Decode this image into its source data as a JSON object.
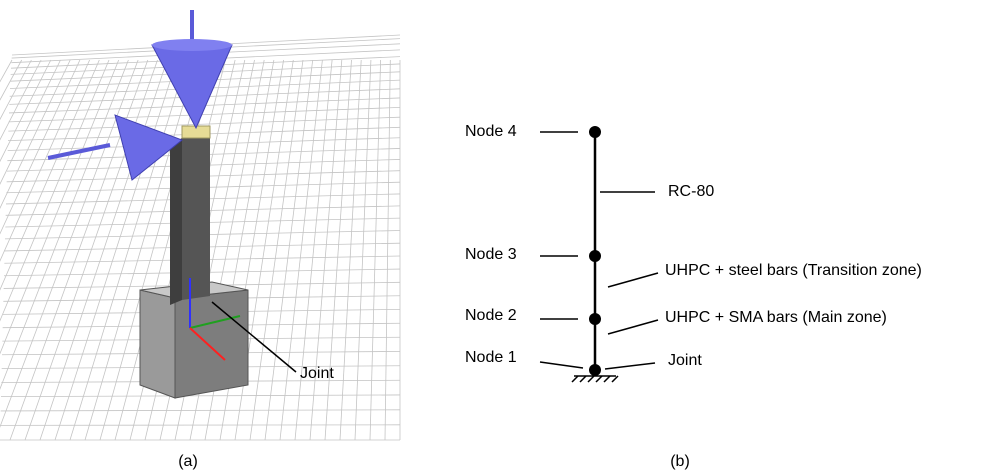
{
  "panel_a": {
    "labels": {
      "joint": "Joint"
    },
    "caption": "(a)"
  },
  "panel_b": {
    "nodes": [
      {
        "label": "Node 1"
      },
      {
        "label": "Node 2"
      },
      {
        "label": "Node 3"
      },
      {
        "label": "Node 4"
      }
    ],
    "elements": [
      {
        "label": "RC-80"
      },
      {
        "label": "UHPC + steel bars (Transition zone)"
      },
      {
        "label": "UHPC + SMA bars (Main zone)"
      },
      {
        "label": "Joint"
      }
    ],
    "caption": "(b)"
  }
}
